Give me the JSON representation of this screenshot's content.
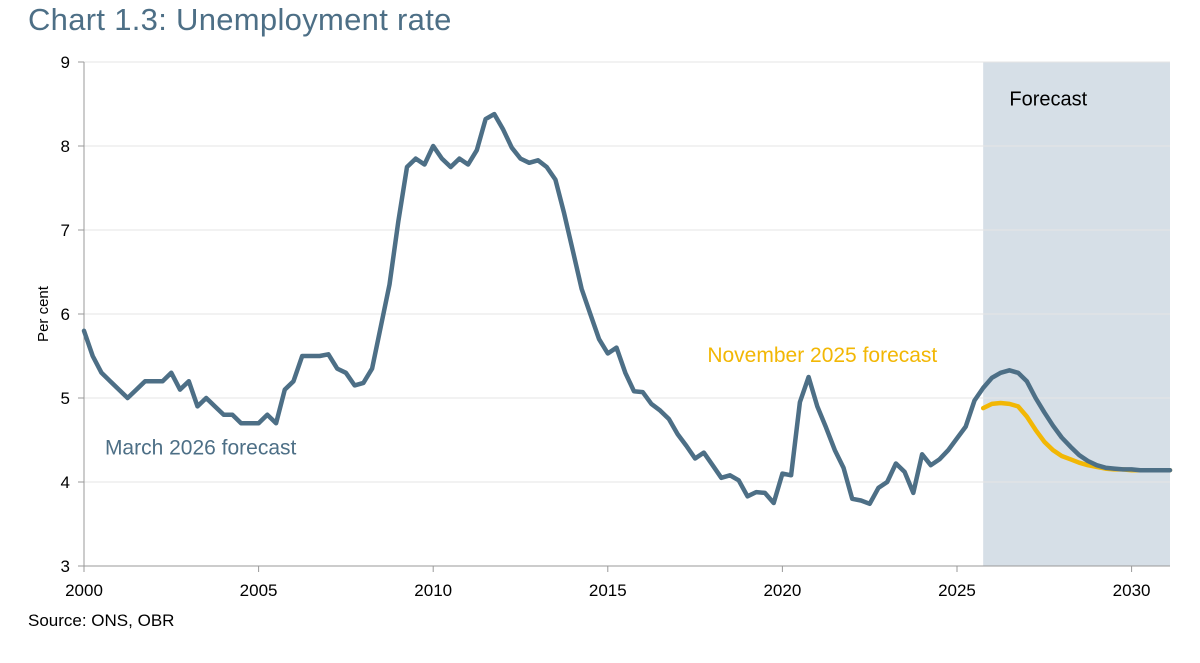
{
  "page": {
    "title": "Chart 1.3: Unemployment rate",
    "source": "Source: ONS, OBR"
  },
  "chart_data": {
    "type": "line",
    "title": "Chart 1.3: Unemployment rate",
    "xlabel": "",
    "ylabel": "Per cent",
    "xlim": [
      2000,
      2031.1
    ],
    "ylim": [
      3,
      9
    ],
    "x_ticks": [
      "2000",
      "2005",
      "2010",
      "2015",
      "2020",
      "2025",
      "2030"
    ],
    "y_ticks": [
      "3",
      "4",
      "5",
      "6",
      "7",
      "8",
      "9"
    ],
    "grid": "horizontal",
    "forecast_region": {
      "start": 2025.75,
      "end": 2031.1,
      "label": "Forecast"
    },
    "series": [
      {
        "name": "March 2026 forecast",
        "color": "#4d6f86",
        "x": [
          2000.0,
          2000.25,
          2000.5,
          2000.75,
          2001.0,
          2001.25,
          2001.5,
          2001.75,
          2002.0,
          2002.25,
          2002.5,
          2002.75,
          2003.0,
          2003.25,
          2003.5,
          2003.75,
          2004.0,
          2004.25,
          2004.5,
          2004.75,
          2005.0,
          2005.25,
          2005.5,
          2005.75,
          2006.0,
          2006.25,
          2006.5,
          2006.75,
          2007.0,
          2007.25,
          2007.5,
          2007.75,
          2008.0,
          2008.25,
          2008.5,
          2008.75,
          2009.0,
          2009.25,
          2009.5,
          2009.75,
          2010.0,
          2010.25,
          2010.5,
          2010.75,
          2011.0,
          2011.25,
          2011.5,
          2011.75,
          2012.0,
          2012.25,
          2012.5,
          2012.75,
          2013.0,
          2013.25,
          2013.5,
          2013.75,
          2014.0,
          2014.25,
          2014.5,
          2014.75,
          2015.0,
          2015.25,
          2015.5,
          2015.75,
          2016.0,
          2016.25,
          2016.5,
          2016.75,
          2017.0,
          2017.25,
          2017.5,
          2017.75,
          2018.0,
          2018.25,
          2018.5,
          2018.75,
          2019.0,
          2019.25,
          2019.5,
          2019.75,
          2020.0,
          2020.25,
          2020.5,
          2020.75,
          2021.0,
          2021.25,
          2021.5,
          2021.75,
          2022.0,
          2022.25,
          2022.5,
          2022.75,
          2023.0,
          2023.25,
          2023.5,
          2023.75,
          2024.0,
          2024.25,
          2024.5,
          2024.75,
          2025.0,
          2025.25,
          2025.5,
          2025.75,
          2026.0,
          2026.25,
          2026.5,
          2026.75,
          2027.0,
          2027.25,
          2027.5,
          2027.75,
          2028.0,
          2028.25,
          2028.5,
          2028.75,
          2029.0,
          2029.25,
          2029.5,
          2029.75,
          2030.0,
          2030.25,
          2030.5,
          2030.75,
          2031.0,
          2031.1
        ],
        "values": [
          5.8,
          5.5,
          5.3,
          5.2,
          5.1,
          5.0,
          5.1,
          5.2,
          5.2,
          5.2,
          5.3,
          5.1,
          5.2,
          4.9,
          5.0,
          4.9,
          4.8,
          4.8,
          4.7,
          4.7,
          4.7,
          4.8,
          4.7,
          5.1,
          5.2,
          5.5,
          5.5,
          5.5,
          5.52,
          5.35,
          5.3,
          5.15,
          5.18,
          5.35,
          5.85,
          6.35,
          7.1,
          7.75,
          7.85,
          7.78,
          8.0,
          7.85,
          7.75,
          7.85,
          7.78,
          7.95,
          8.32,
          8.38,
          8.2,
          7.98,
          7.85,
          7.8,
          7.83,
          7.75,
          7.6,
          7.2,
          6.75,
          6.3,
          6.0,
          5.7,
          5.53,
          5.6,
          5.3,
          5.08,
          5.07,
          4.93,
          4.85,
          4.75,
          4.57,
          4.43,
          4.28,
          4.35,
          4.2,
          4.05,
          4.08,
          4.02,
          3.83,
          3.88,
          3.87,
          3.75,
          4.1,
          4.08,
          4.95,
          5.25,
          4.9,
          4.65,
          4.38,
          4.17,
          3.8,
          3.78,
          3.74,
          3.93,
          4.0,
          4.22,
          4.12,
          3.87,
          4.33,
          4.2,
          4.27,
          4.38,
          4.52,
          4.66,
          4.97,
          5.12,
          5.24,
          5.3,
          5.33,
          5.3,
          5.2,
          5.0,
          4.83,
          4.67,
          4.53,
          4.42,
          4.32,
          4.25,
          4.2,
          4.17,
          4.16,
          4.15,
          4.15,
          4.14,
          4.14,
          4.14,
          4.14,
          4.14
        ]
      },
      {
        "name": "November 2025 forecast",
        "color": "#f2b705",
        "x": [
          2025.75,
          2026.0,
          2026.25,
          2026.5,
          2026.75,
          2027.0,
          2027.25,
          2027.5,
          2027.75,
          2028.0,
          2028.25,
          2028.5,
          2028.75,
          2029.0,
          2029.25,
          2029.5,
          2029.75,
          2030.0,
          2030.25,
          2030.5,
          2030.75,
          2031.0,
          2031.1
        ],
        "values": [
          4.88,
          4.93,
          4.94,
          4.93,
          4.9,
          4.78,
          4.62,
          4.48,
          4.38,
          4.31,
          4.27,
          4.23,
          4.2,
          4.18,
          4.16,
          4.15,
          4.15,
          4.14,
          4.14,
          4.14,
          4.14,
          4.14,
          4.14
        ]
      }
    ],
    "annotations": [
      {
        "text": "March 2026 forecast",
        "series": "March 2026 forecast",
        "x": 2000.6,
        "y": 4.33
      },
      {
        "text": "November 2025 forecast",
        "series": "November 2025 forecast",
        "x": 2017.85,
        "y": 5.43
      },
      {
        "text": "Forecast",
        "series": "",
        "x": 2026.5,
        "y": 8.48
      }
    ]
  }
}
